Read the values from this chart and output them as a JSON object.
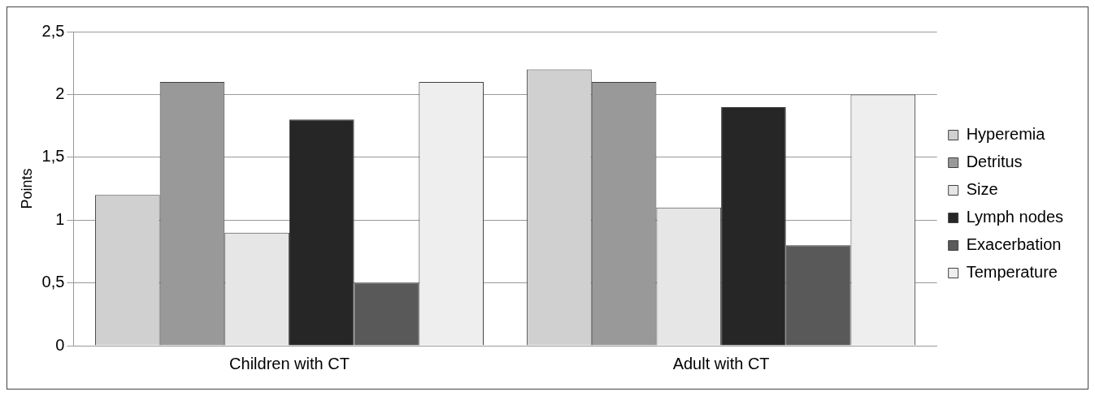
{
  "chart_data": {
    "type": "bar",
    "ylabel": "Points",
    "categories": [
      "Children with CT",
      "Adult with CT"
    ],
    "series": [
      {
        "name": "Hyperemia",
        "color": "#d0d0d0",
        "values": [
          1.2,
          2.2
        ]
      },
      {
        "name": "Detritus",
        "color": "#999999",
        "values": [
          2.1,
          2.1
        ]
      },
      {
        "name": "Size",
        "color": "#e6e6e6",
        "values": [
          0.9,
          1.1
        ]
      },
      {
        "name": "Lymph nodes",
        "color": "#262626",
        "values": [
          1.8,
          1.9
        ]
      },
      {
        "name": "Exacerbation",
        "color": "#595959",
        "values": [
          0.5,
          0.8
        ]
      },
      {
        "name": "Temperature",
        "color": "#eeeeee",
        "values": [
          2.1,
          2.0
        ]
      }
    ],
    "ylim": [
      0,
      2.5
    ],
    "yticks": [
      0,
      {
        "value": 0.5,
        "label": "0,5"
      },
      1,
      {
        "value": 1.5,
        "label": "1,5"
      },
      2,
      {
        "value": 2.5,
        "label": "2,5"
      }
    ],
    "grid": "y",
    "legend": "right"
  }
}
